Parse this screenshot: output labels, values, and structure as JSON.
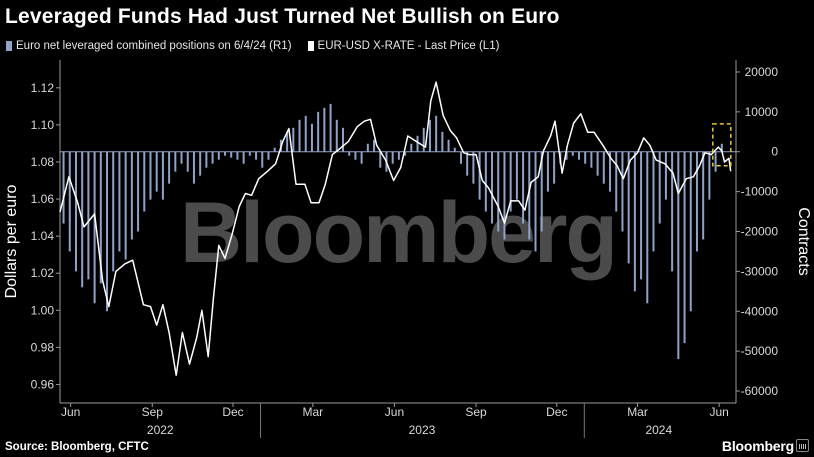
{
  "title": "Leveraged Funds Had Just Turned Net Bullish on Euro",
  "source": "Source: Bloomberg, CFTC",
  "brand": "Bloomberg",
  "watermark": "Bloomberg",
  "chart_data": {
    "type": "line",
    "title": "Leveraged Funds Had Just Turned Net Bullish on Euro",
    "legend_position": "top-left",
    "left_axis": {
      "label": "Dollars per euro",
      "ylim": [
        0.95,
        1.135
      ],
      "ticks": [
        "1.12",
        "1.10",
        "1.08",
        "1.06",
        "1.04",
        "1.02",
        "1.00",
        "0.98",
        "0.96"
      ],
      "tick_values": [
        1.12,
        1.1,
        1.08,
        1.06,
        1.04,
        1.02,
        1.0,
        0.98,
        0.96
      ]
    },
    "right_axis": {
      "label": "Contracts",
      "ylim": [
        -63000,
        23000
      ],
      "ticks": [
        "20000",
        "10000",
        "0",
        "-10000",
        "-20000",
        "-30000",
        "-40000",
        "-50000",
        "-60000"
      ],
      "tick_values": [
        20000,
        10000,
        0,
        -10000,
        -20000,
        -30000,
        -40000,
        -50000,
        -60000
      ]
    },
    "x_axis": {
      "range": [
        "2022-05-20",
        "2024-06-20"
      ],
      "month_ticks": [
        {
          "label": "Jun",
          "date": "2022-06-01"
        },
        {
          "label": "Sep",
          "date": "2022-09-01"
        },
        {
          "label": "Dec",
          "date": "2022-12-01"
        },
        {
          "label": "Mar",
          "date": "2023-03-01"
        },
        {
          "label": "Jun",
          "date": "2023-06-01"
        },
        {
          "label": "Sep",
          "date": "2023-09-01"
        },
        {
          "label": "Dec",
          "date": "2023-12-01"
        },
        {
          "label": "Mar",
          "date": "2024-03-01"
        },
        {
          "label": "Jun",
          "date": "2024-06-01"
        }
      ],
      "years": [
        {
          "label": "2022",
          "center": "2022-09-10"
        },
        {
          "label": "2023",
          "center": "2023-07-02"
        },
        {
          "label": "2024",
          "center": "2024-03-25"
        }
      ],
      "year_separators": [
        "2023-01-01",
        "2024-01-01"
      ]
    },
    "series": [
      {
        "name": "Euro net leveraged combined positions on 6/4/24 (R1)",
        "kind": "bar",
        "axis": "right",
        "color": "#8fa3c8",
        "x": [
          "2022-05-24",
          "2022-05-31",
          "2022-06-07",
          "2022-06-14",
          "2022-06-21",
          "2022-06-28",
          "2022-07-05",
          "2022-07-12",
          "2022-07-19",
          "2022-07-26",
          "2022-08-02",
          "2022-08-09",
          "2022-08-16",
          "2022-08-23",
          "2022-08-30",
          "2022-09-06",
          "2022-09-13",
          "2022-09-20",
          "2022-09-27",
          "2022-10-04",
          "2022-10-11",
          "2022-10-18",
          "2022-10-25",
          "2022-11-01",
          "2022-11-08",
          "2022-11-15",
          "2022-11-22",
          "2022-11-29",
          "2022-12-06",
          "2022-12-13",
          "2022-12-20",
          "2022-12-27",
          "2023-01-03",
          "2023-01-10",
          "2023-01-17",
          "2023-01-24",
          "2023-01-31",
          "2023-02-07",
          "2023-02-14",
          "2023-02-21",
          "2023-02-28",
          "2023-03-07",
          "2023-03-14",
          "2023-03-21",
          "2023-03-28",
          "2023-04-04",
          "2023-04-11",
          "2023-04-18",
          "2023-04-25",
          "2023-05-02",
          "2023-05-09",
          "2023-05-16",
          "2023-05-23",
          "2023-05-30",
          "2023-06-06",
          "2023-06-13",
          "2023-06-20",
          "2023-06-27",
          "2023-07-04",
          "2023-07-11",
          "2023-07-18",
          "2023-07-25",
          "2023-08-01",
          "2023-08-08",
          "2023-08-15",
          "2023-08-22",
          "2023-08-29",
          "2023-09-05",
          "2023-09-12",
          "2023-09-19",
          "2023-09-26",
          "2023-10-03",
          "2023-10-10",
          "2023-10-17",
          "2023-10-24",
          "2023-10-31",
          "2023-11-07",
          "2023-11-14",
          "2023-11-21",
          "2023-11-28",
          "2023-12-05",
          "2023-12-12",
          "2023-12-19",
          "2023-12-26",
          "2024-01-02",
          "2024-01-09",
          "2024-01-16",
          "2024-01-23",
          "2024-01-30",
          "2024-02-06",
          "2024-02-13",
          "2024-02-20",
          "2024-02-27",
          "2024-03-05",
          "2024-03-12",
          "2024-03-19",
          "2024-03-26",
          "2024-04-02",
          "2024-04-09",
          "2024-04-16",
          "2024-04-23",
          "2024-04-30",
          "2024-05-07",
          "2024-05-14",
          "2024-05-21",
          "2024-05-28",
          "2024-06-04"
        ],
        "values": [
          -18000,
          -25000,
          -30000,
          -34000,
          -32000,
          -38000,
          -33000,
          -40000,
          -30000,
          -25000,
          -27000,
          -22000,
          -20000,
          -15000,
          -12000,
          -10000,
          -12000,
          -8000,
          -5000,
          -3000,
          -5000,
          -8000,
          -6000,
          -4000,
          -3000,
          -2000,
          -1000,
          -1500,
          -2000,
          -3000,
          -1000,
          -2000,
          -4000,
          -2000,
          1000,
          3000,
          5000,
          6000,
          8000,
          9000,
          7000,
          10000,
          11000,
          12000,
          8000,
          6000,
          -1000,
          -2000,
          -3000,
          2000,
          3000,
          -4000,
          -5000,
          -3000,
          -2000,
          -1000,
          2000,
          4000,
          6000,
          8000,
          9000,
          5000,
          3000,
          1000,
          -3000,
          -6000,
          -8000,
          -12000,
          -15000,
          -18000,
          -20000,
          -22000,
          -15000,
          -12000,
          -18000,
          -22000,
          -25000,
          -20000,
          -10000,
          -8000,
          -3000,
          -2000,
          -1000,
          -2000,
          -3000,
          -4000,
          -6000,
          -8000,
          -10000,
          -15000,
          -20000,
          -28000,
          -35000,
          -32000,
          -38000,
          -25000,
          -18000,
          -12000,
          -30000,
          -52000,
          -48000,
          -40000,
          -25000,
          -22000,
          -12000,
          -5000,
          2000
        ],
        "annotated_last": {
          "date": "2024-06-04",
          "value": 2000,
          "marker": "dashed-yellow-box"
        }
      },
      {
        "name": "EUR-USD X-RATE - Last Price (L1)",
        "kind": "line",
        "axis": "left",
        "color": "#ffffff",
        "x": [
          "2022-05-20",
          "2022-05-30",
          "2022-06-09",
          "2022-06-16",
          "2022-06-28",
          "2022-07-07",
          "2022-07-14",
          "2022-07-22",
          "2022-08-01",
          "2022-08-10",
          "2022-08-22",
          "2022-08-30",
          "2022-09-06",
          "2022-09-13",
          "2022-09-20",
          "2022-09-28",
          "2022-10-05",
          "2022-10-13",
          "2022-10-21",
          "2022-10-27",
          "2022-11-03",
          "2022-11-09",
          "2022-11-15",
          "2022-11-22",
          "2022-11-30",
          "2022-12-08",
          "2022-12-15",
          "2022-12-22",
          "2022-12-30",
          "2023-01-09",
          "2023-01-18",
          "2023-01-26",
          "2023-02-02",
          "2023-02-10",
          "2023-02-20",
          "2023-02-27",
          "2023-03-08",
          "2023-03-15",
          "2023-03-23",
          "2023-03-31",
          "2023-04-10",
          "2023-04-20",
          "2023-04-28",
          "2023-05-05",
          "2023-05-12",
          "2023-05-22",
          "2023-05-31",
          "2023-06-08",
          "2023-06-16",
          "2023-06-26",
          "2023-07-06",
          "2023-07-12",
          "2023-07-18",
          "2023-07-26",
          "2023-08-03",
          "2023-08-10",
          "2023-08-18",
          "2023-08-24",
          "2023-09-01",
          "2023-09-08",
          "2023-09-15",
          "2023-09-26",
          "2023-10-03",
          "2023-10-10",
          "2023-10-19",
          "2023-10-26",
          "2023-11-02",
          "2023-11-10",
          "2023-11-16",
          "2023-11-24",
          "2023-11-29",
          "2023-12-07",
          "2023-12-13",
          "2023-12-20",
          "2023-12-28",
          "2024-01-05",
          "2024-01-12",
          "2024-01-22",
          "2024-01-31",
          "2024-02-07",
          "2024-02-14",
          "2024-02-22",
          "2024-03-01",
          "2024-03-08",
          "2024-03-15",
          "2024-03-22",
          "2024-04-01",
          "2024-04-10",
          "2024-04-16",
          "2024-04-25",
          "2024-05-03",
          "2024-05-10",
          "2024-05-16",
          "2024-05-23",
          "2024-05-31",
          "2024-06-04",
          "2024-06-07",
          "2024-06-12",
          "2024-06-14"
        ],
        "values": [
          1.053,
          1.072,
          1.058,
          1.045,
          1.052,
          1.016,
          1.002,
          1.021,
          1.025,
          1.027,
          1.003,
          1.002,
          0.992,
          1.003,
          0.988,
          0.965,
          0.988,
          0.971,
          0.985,
          1.0,
          0.975,
          1.007,
          1.035,
          1.028,
          1.041,
          1.056,
          1.063,
          1.062,
          1.071,
          1.075,
          1.079,
          1.091,
          1.098,
          1.068,
          1.068,
          1.058,
          1.058,
          1.068,
          1.084,
          1.087,
          1.091,
          1.099,
          1.102,
          1.103,
          1.089,
          1.081,
          1.07,
          1.077,
          1.094,
          1.091,
          1.088,
          1.113,
          1.123,
          1.105,
          1.097,
          1.093,
          1.085,
          1.084,
          1.084,
          1.07,
          1.066,
          1.056,
          1.047,
          1.059,
          1.059,
          1.054,
          1.069,
          1.072,
          1.086,
          1.094,
          1.102,
          1.074,
          1.089,
          1.101,
          1.106,
          1.096,
          1.096,
          1.089,
          1.082,
          1.078,
          1.071,
          1.081,
          1.085,
          1.093,
          1.089,
          1.081,
          1.079,
          1.074,
          1.063,
          1.071,
          1.072,
          1.078,
          1.085,
          1.084,
          1.088,
          1.086,
          1.08,
          1.082,
          1.075
        ]
      }
    ]
  }
}
